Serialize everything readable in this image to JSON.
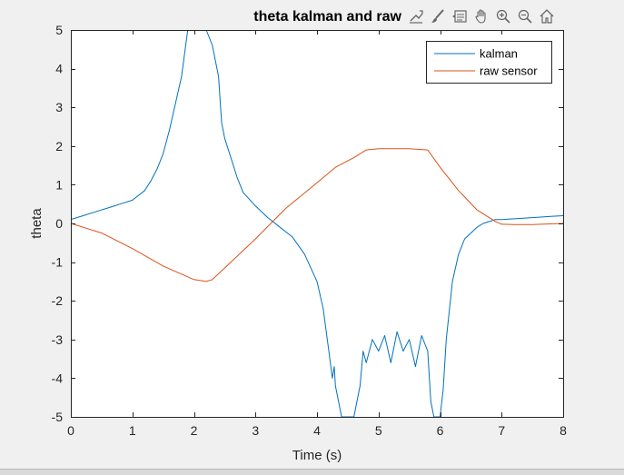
{
  "toolbar": {
    "icons": [
      "export-icon",
      "brush-icon",
      "data-tips-icon",
      "pan-icon",
      "zoom-in-icon",
      "zoom-out-icon",
      "home-icon"
    ]
  },
  "chart_data": {
    "type": "line",
    "title": "theta kalman and raw",
    "xlabel": "Time (s)",
    "ylabel": "theta",
    "xlim": [
      0,
      8
    ],
    "ylim": [
      -5,
      5
    ],
    "xticks": [
      "0",
      "1",
      "2",
      "3",
      "4",
      "5",
      "6",
      "7",
      "8"
    ],
    "yticks": [
      "-5",
      "-4",
      "-3",
      "-2",
      "-1",
      "0",
      "1",
      "2",
      "3",
      "4",
      "5"
    ],
    "grid": false,
    "legend_position": "top-right",
    "series": [
      {
        "name": "kalman",
        "color": "#0072bd",
        "x": [
          0,
          0.2,
          0.4,
          0.6,
          0.8,
          1.0,
          1.2,
          1.3,
          1.4,
          1.5,
          1.6,
          1.7,
          1.8,
          1.9,
          2.0,
          2.1,
          2.2,
          2.3,
          2.4,
          2.45,
          2.5,
          2.6,
          2.7,
          2.8,
          3.0,
          3.2,
          3.4,
          3.6,
          3.8,
          4.0,
          4.1,
          4.15,
          4.2,
          4.25,
          4.28,
          4.3,
          4.35,
          4.4,
          4.5,
          4.6,
          4.7,
          4.75,
          4.8,
          4.9,
          5.0,
          5.1,
          5.2,
          5.3,
          5.4,
          5.5,
          5.6,
          5.7,
          5.8,
          5.85,
          5.9,
          6.0,
          6.05,
          6.1,
          6.2,
          6.3,
          6.4,
          6.5,
          6.6,
          6.7,
          6.8,
          6.9,
          7.0,
          7.2,
          7.5,
          7.8,
          8.0
        ],
        "y": [
          0.1,
          0.2,
          0.3,
          0.4,
          0.5,
          0.6,
          0.85,
          1.1,
          1.4,
          1.8,
          2.4,
          3.1,
          3.8,
          5.0,
          5.0,
          5.0,
          5.0,
          4.6,
          3.8,
          2.6,
          2.2,
          1.7,
          1.2,
          0.8,
          0.45,
          0.15,
          -0.1,
          -0.35,
          -0.8,
          -1.5,
          -2.2,
          -2.8,
          -3.4,
          -4.0,
          -3.7,
          -4.2,
          -4.6,
          -5.0,
          -5.0,
          -5.0,
          -4.2,
          -3.3,
          -3.6,
          -3.0,
          -3.3,
          -2.9,
          -3.6,
          -2.8,
          -3.3,
          -3.0,
          -3.7,
          -2.9,
          -3.3,
          -4.6,
          -5.0,
          -5.0,
          -4.3,
          -3.0,
          -1.5,
          -0.8,
          -0.4,
          -0.25,
          -0.1,
          0.0,
          0.05,
          0.1,
          0.1,
          0.12,
          0.15,
          0.18,
          0.2
        ]
      },
      {
        "name": "raw sensor",
        "color": "#d95319",
        "x": [
          0,
          0.5,
          1.0,
          1.5,
          2.0,
          2.2,
          2.3,
          2.6,
          3.0,
          3.5,
          4.0,
          4.3,
          4.6,
          4.8,
          5.0,
          5.5,
          5.8,
          6.0,
          6.3,
          6.6,
          6.9,
          7.0,
          7.2,
          7.5,
          8.0
        ],
        "y": [
          0.0,
          -0.25,
          -0.65,
          -1.1,
          -1.45,
          -1.5,
          -1.45,
          -1.0,
          -0.4,
          0.4,
          1.05,
          1.45,
          1.7,
          1.9,
          1.93,
          1.93,
          1.9,
          1.45,
          0.85,
          0.35,
          0.05,
          -0.02,
          -0.03,
          -0.03,
          0.0
        ]
      }
    ]
  }
}
